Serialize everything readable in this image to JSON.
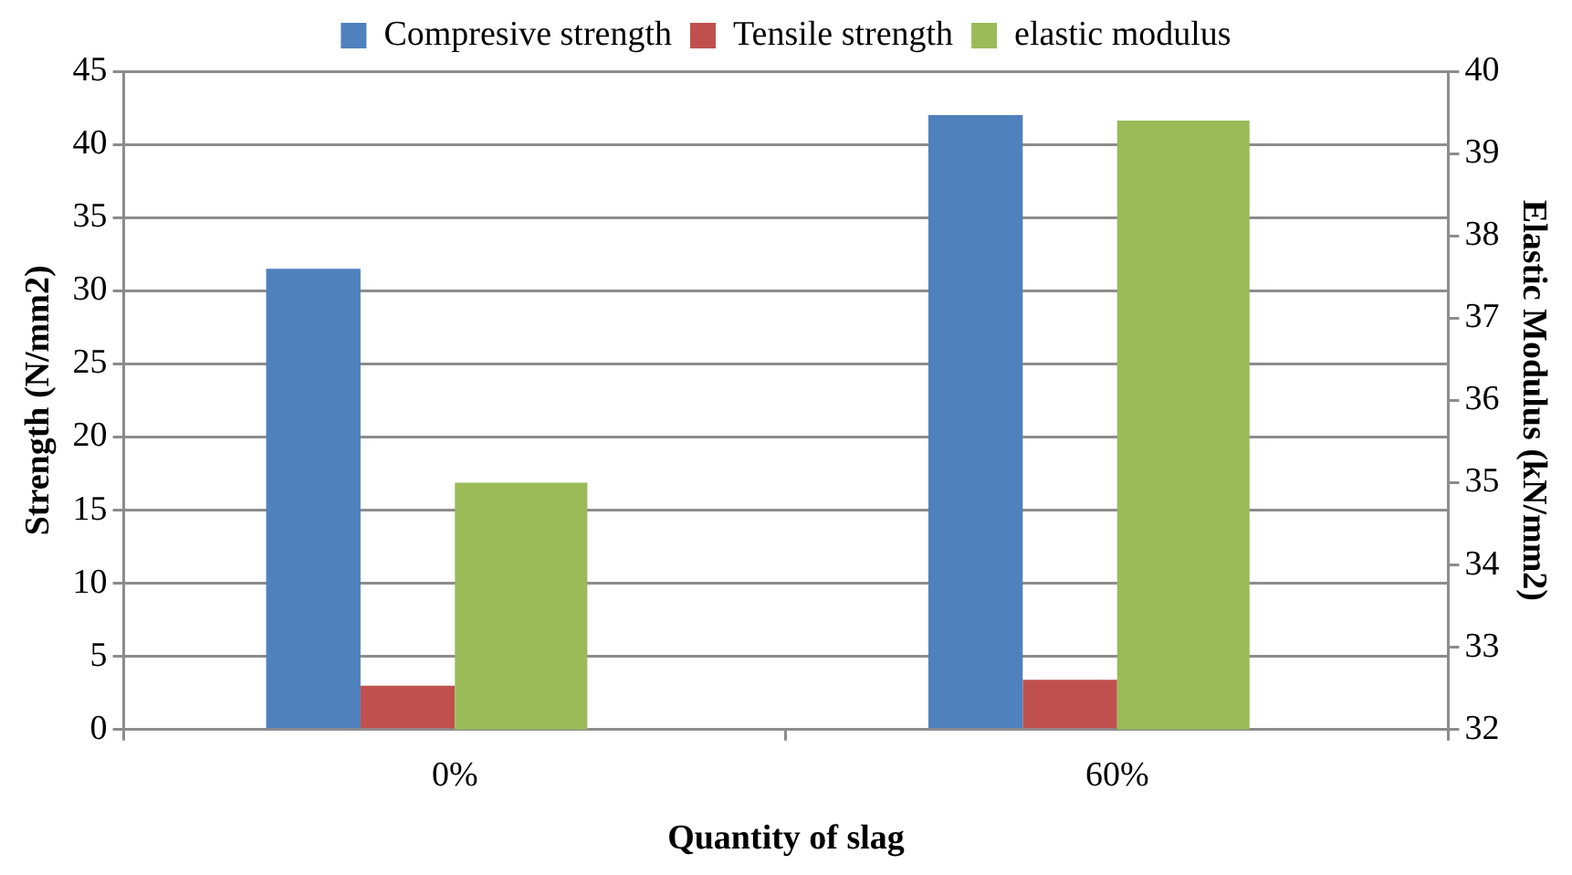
{
  "chart_data": {
    "type": "bar",
    "xlabel": "Quantity of slag",
    "ylabel": "Strength (N/mm2)",
    "y2label": "Elastic Modulus (kN/mm2)",
    "categories": [
      "0%",
      "60%"
    ],
    "series": [
      {
        "name": "Compresive strength",
        "color": "#4f81bd",
        "values": [
          31.5,
          42
        ]
      },
      {
        "name": "Tensile strength",
        "color": "#c0504d",
        "values": [
          3.0,
          3.4
        ]
      },
      {
        "name": "elastic modulus",
        "color": "#9bbb59",
        "values": [
          35.0,
          39.4
        ],
        "axis": "y2"
      }
    ],
    "ylim": [
      0,
      45
    ],
    "yticks": [
      0,
      5,
      10,
      15,
      20,
      25,
      30,
      35,
      40,
      45
    ],
    "y2lim": [
      32,
      40
    ],
    "y2ticks": [
      32,
      33,
      34,
      35,
      36,
      37,
      38,
      39,
      40
    ],
    "grid": "y",
    "legend": "top"
  }
}
